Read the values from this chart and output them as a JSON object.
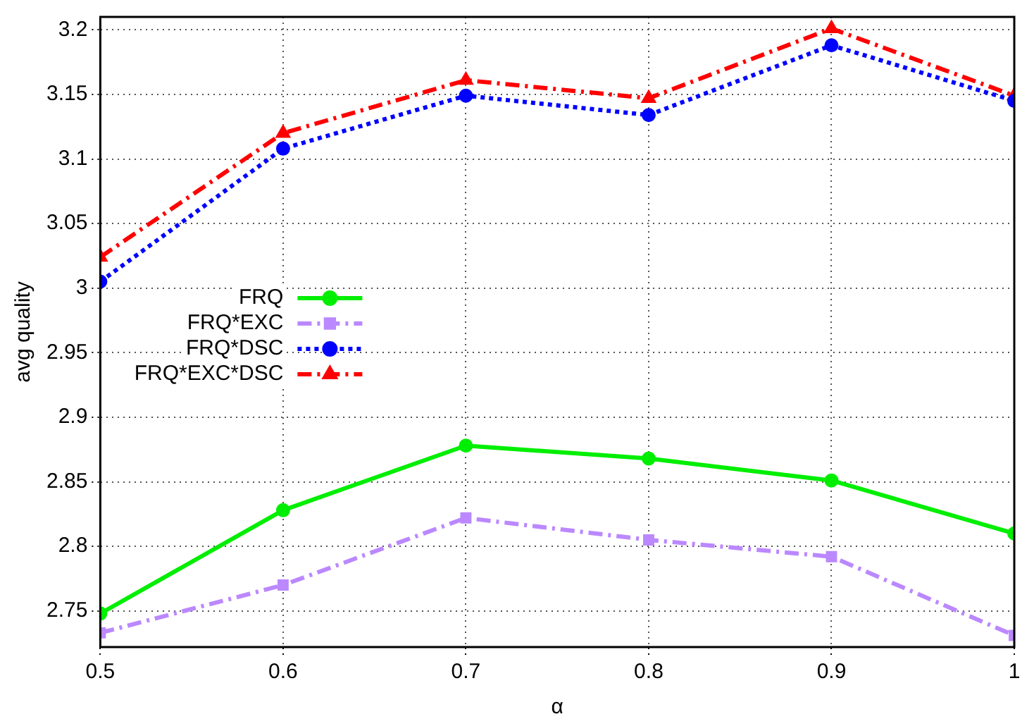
{
  "chart_data": {
    "type": "line",
    "xlabel": "α",
    "ylabel": "avg quality",
    "x": [
      0.5,
      0.6,
      0.7,
      0.8,
      0.9,
      1
    ],
    "series": [
      {
        "name": "FRQ",
        "color": "#00ee00",
        "marker": "circle",
        "line_style": "solid",
        "values": [
          2.748,
          2.828,
          2.878,
          2.868,
          2.851,
          2.81
        ]
      },
      {
        "name": "FRQ*EXC",
        "color": "#bb88ff",
        "marker": "square",
        "line_style": "dashed",
        "values": [
          2.733,
          2.77,
          2.822,
          2.805,
          2.792,
          2.731
        ]
      },
      {
        "name": "FRQ*DSC",
        "color": "#0000ff",
        "marker": "circle",
        "line_style": "dotted",
        "values": [
          3.005,
          3.108,
          3.149,
          3.134,
          3.188,
          3.145
        ]
      },
      {
        "name": "FRQ*EXC*DSC",
        "color": "#ff0000",
        "marker": "triangle",
        "line_style": "dashed",
        "values": [
          3.024,
          3.12,
          3.161,
          3.147,
          3.201,
          3.149
        ]
      }
    ],
    "xlim": [
      0.5,
      1
    ],
    "xticks": [
      0.5,
      0.6,
      0.7,
      0.8,
      0.9,
      1
    ],
    "ylim": [
      2.722,
      3.21
    ],
    "yticks": [
      2.75,
      2.8,
      2.85,
      2.9,
      2.95,
      3,
      3.05,
      3.1,
      3.15,
      3.2
    ],
    "grid": true,
    "legend": "left"
  }
}
